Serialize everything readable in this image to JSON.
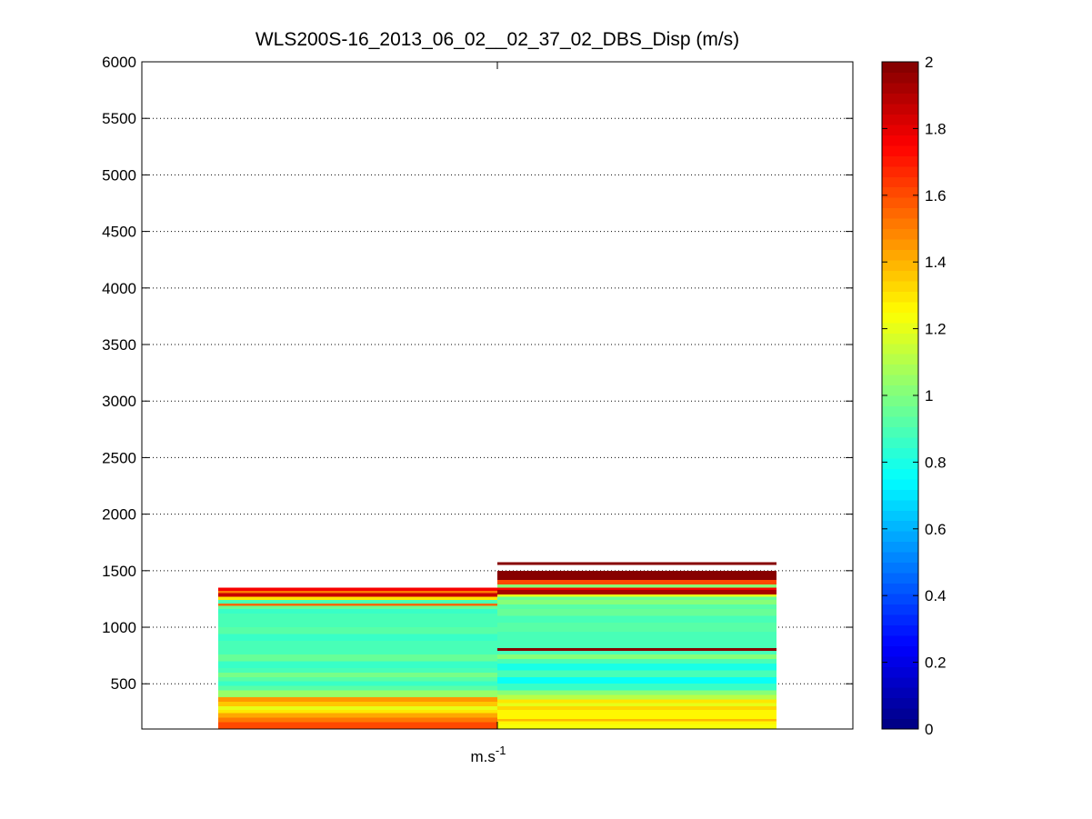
{
  "chart_data": {
    "type": "heatmap",
    "title": "WLS200S-16_2013_06_02__02_37_02_DBS_Disp (m/s)",
    "xlabel": "m.s",
    "xlabel_superscript": "-1",
    "ylabel": "",
    "ylim": [
      100,
      6000
    ],
    "yticks": [
      500,
      1000,
      1500,
      2000,
      2500,
      3000,
      3500,
      4000,
      4500,
      5000,
      5500,
      6000
    ],
    "grid": "y-dotted",
    "colormap": "jet",
    "clim": [
      0,
      2
    ],
    "colorbar_ticks": [
      0,
      0.2,
      0.4,
      0.6,
      0.8,
      1,
      1.2,
      1.4,
      1.6,
      1.8,
      2
    ],
    "colorbar_tick_labels": [
      "0",
      "0.2",
      "0.4",
      "0.6",
      "0.8",
      "1",
      "1.2",
      "1.4",
      "1.6",
      "1.8",
      "2"
    ],
    "columns": [
      {
        "bins": [
          {
            "from": 100,
            "to": 160,
            "value": 1.62
          },
          {
            "from": 160,
            "to": 200,
            "value": 1.5
          },
          {
            "from": 200,
            "to": 240,
            "value": 1.42
          },
          {
            "from": 240,
            "to": 270,
            "value": 1.3
          },
          {
            "from": 270,
            "to": 300,
            "value": 1.2
          },
          {
            "from": 300,
            "to": 340,
            "value": 1.35
          },
          {
            "from": 340,
            "to": 380,
            "value": 1.45
          },
          {
            "from": 380,
            "to": 440,
            "value": 1.05
          },
          {
            "from": 440,
            "to": 480,
            "value": 0.92
          },
          {
            "from": 480,
            "to": 520,
            "value": 0.85
          },
          {
            "from": 520,
            "to": 560,
            "value": 0.93
          },
          {
            "from": 560,
            "to": 600,
            "value": 0.98
          },
          {
            "from": 600,
            "to": 640,
            "value": 0.9
          },
          {
            "from": 640,
            "to": 700,
            "value": 0.87
          },
          {
            "from": 700,
            "to": 760,
            "value": 0.95
          },
          {
            "from": 760,
            "to": 820,
            "value": 0.88
          },
          {
            "from": 820,
            "to": 880,
            "value": 0.9
          },
          {
            "from": 880,
            "to": 940,
            "value": 0.86
          },
          {
            "from": 940,
            "to": 1000,
            "value": 0.92
          },
          {
            "from": 1000,
            "to": 1060,
            "value": 0.88
          },
          {
            "from": 1060,
            "to": 1120,
            "value": 0.9
          },
          {
            "from": 1120,
            "to": 1160,
            "value": 0.87
          },
          {
            "from": 1160,
            "to": 1190,
            "value": 0.95
          },
          {
            "from": 1190,
            "to": 1210,
            "value": 1.55
          },
          {
            "from": 1210,
            "to": 1240,
            "value": 0.9
          },
          {
            "from": 1240,
            "to": 1270,
            "value": 1.3
          },
          {
            "from": 1270,
            "to": 1300,
            "value": 1.85
          },
          {
            "from": 1300,
            "to": 1320,
            "value": 1.5
          },
          {
            "from": 1320,
            "to": 1350,
            "value": 1.75
          }
        ]
      },
      {
        "bins": [
          {
            "from": 100,
            "to": 140,
            "value": 1.22
          },
          {
            "from": 140,
            "to": 170,
            "value": 1.25
          },
          {
            "from": 170,
            "to": 190,
            "value": 1.4
          },
          {
            "from": 190,
            "to": 230,
            "value": 1.25
          },
          {
            "from": 230,
            "to": 270,
            "value": 1.28
          },
          {
            "from": 270,
            "to": 300,
            "value": 1.33
          },
          {
            "from": 300,
            "to": 330,
            "value": 1.2
          },
          {
            "from": 330,
            "to": 360,
            "value": 1.3
          },
          {
            "from": 360,
            "to": 400,
            "value": 1.1
          },
          {
            "from": 400,
            "to": 440,
            "value": 1.0
          },
          {
            "from": 440,
            "to": 500,
            "value": 0.85
          },
          {
            "from": 500,
            "to": 560,
            "value": 0.78
          },
          {
            "from": 560,
            "to": 620,
            "value": 0.88
          },
          {
            "from": 620,
            "to": 680,
            "value": 0.8
          },
          {
            "from": 680,
            "to": 720,
            "value": 0.9
          },
          {
            "from": 720,
            "to": 760,
            "value": 1.0
          },
          {
            "from": 760,
            "to": 790,
            "value": 0.9
          },
          {
            "from": 790,
            "to": 815,
            "value": 1.98
          },
          {
            "from": 815,
            "to": 880,
            "value": 0.9
          },
          {
            "from": 880,
            "to": 960,
            "value": 0.88
          },
          {
            "from": 960,
            "to": 1040,
            "value": 0.92
          },
          {
            "from": 1040,
            "to": 1100,
            "value": 0.9
          },
          {
            "from": 1100,
            "to": 1160,
            "value": 0.95
          },
          {
            "from": 1160,
            "to": 1200,
            "value": 0.93
          },
          {
            "from": 1200,
            "to": 1240,
            "value": 1.0
          },
          {
            "from": 1240,
            "to": 1270,
            "value": 0.95
          },
          {
            "from": 1270,
            "to": 1290,
            "value": 1.2
          },
          {
            "from": 1290,
            "to": 1330,
            "value": 1.92
          },
          {
            "from": 1330,
            "to": 1350,
            "value": 1.75
          },
          {
            "from": 1350,
            "to": 1380,
            "value": 1.0
          },
          {
            "from": 1380,
            "to": 1420,
            "value": 1.6
          },
          {
            "from": 1420,
            "to": 1500,
            "value": 1.98
          },
          {
            "from": 1550,
            "to": 1575,
            "value": 1.98
          }
        ]
      }
    ]
  }
}
